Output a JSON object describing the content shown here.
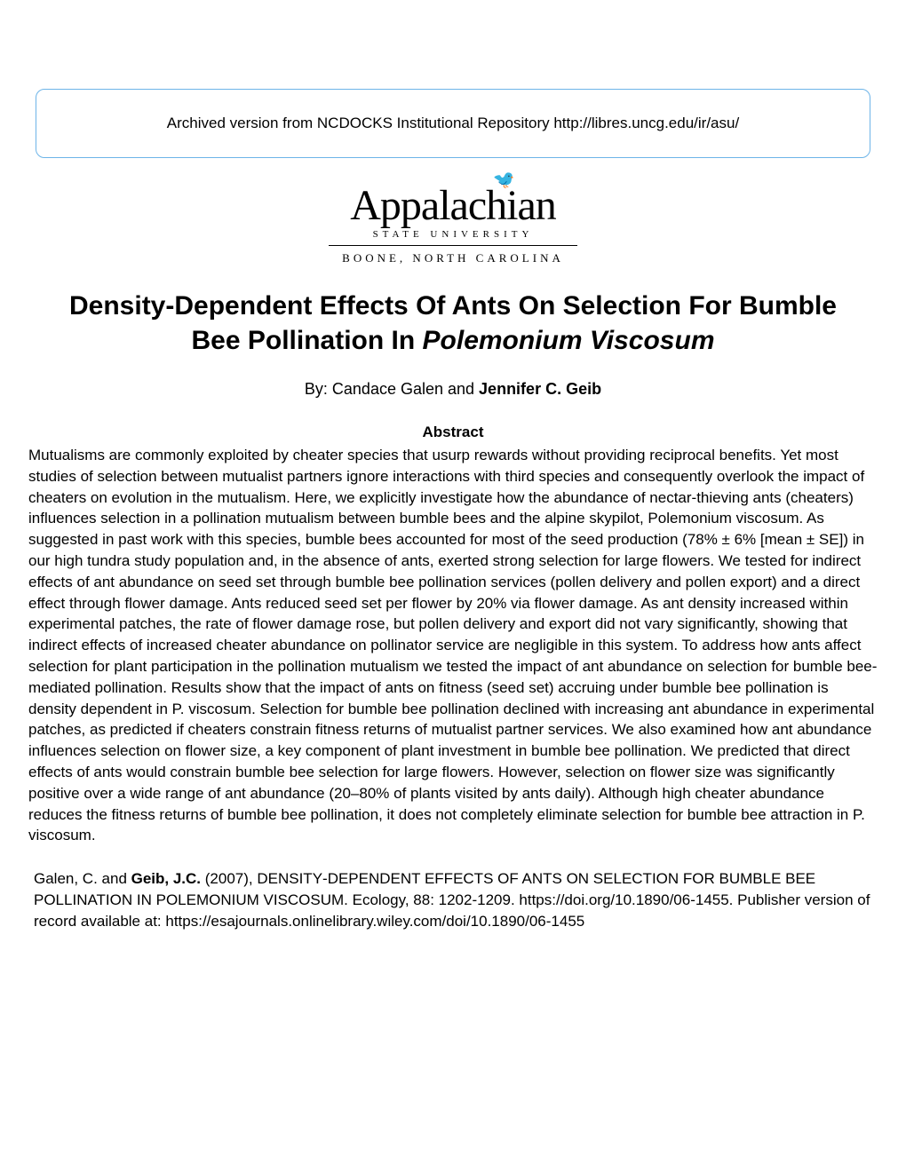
{
  "archive_notice": "Archived version from NCDOCKS Institutional Repository http://libres.uncg.edu/ir/asu/",
  "logo": {
    "main": "Appalachian",
    "subtitle": "STATE UNIVERSITY",
    "location": "BOONE, NORTH CAROLINA"
  },
  "title_line1": "Density-Dependent Effects Of Ants On Selection For Bumble",
  "title_line2_prefix": "Bee Pollination In ",
  "title_line2_italic": "Polemonium Viscosum",
  "byline_prefix": "By: Candace Galen and ",
  "byline_bold": "Jennifer C. Geib",
  "abstract_heading": "Abstract",
  "abstract_text": "Mutualisms are commonly exploited by cheater species that usurp rewards without providing reciprocal benefits. Yet most studies of selection between mutualist partners ignore interactions with third species and consequently overlook the impact of cheaters on evolution in the mutualism. Here, we explicitly investigate how the abundance of nectar‐thieving ants (cheaters) influences selection in a pollination mutualism between bumble bees and the alpine skypilot, Polemonium viscosum. As suggested in past work with this species, bumble bees accounted for most of the seed production (78% ± 6% [mean ± SE]) in our high tundra study population and, in the absence of ants, exerted strong selection for large flowers. We tested for indirect effects of ant abundance on seed set through bumble bee pollination services (pollen delivery and pollen export) and a direct effect through flower damage. Ants reduced seed set per flower by 20% via flower damage. As ant density increased within experimental patches, the rate of flower damage rose, but pollen delivery and export did not vary significantly, showing that indirect effects of increased cheater abundance on pollinator service are negligible in this system. To address how ants affect selection for plant participation in the pollination mutualism we tested the impact of ant abundance on selection for bumble bee‐mediated pollination. Results show that the impact of ants on fitness (seed set) accruing under bumble bee pollination is density dependent in P. viscosum. Selection for bumble bee pollination declined with increasing ant abundance in experimental patches, as predicted if cheaters constrain fitness returns of mutualist partner services. We also examined how ant abundance influences selection on flower size, a key component of plant investment in bumble bee pollination. We predicted that direct effects of ants would constrain bumble bee selection for large flowers. However, selection on flower size was significantly positive over a wide range of ant abundance (20–80% of plants visited by ants daily). Although high cheater abundance reduces the fitness returns of bumble bee pollination, it does not completely eliminate selection for bumble bee attraction in P. viscosum.",
  "citation_prefix": "Galen, C. and ",
  "citation_bold": "Geib, J.C.",
  "citation_suffix": " (2007), DENSITY‐DEPENDENT EFFECTS OF ANTS ON SELECTION FOR BUMBLE BEE POLLINATION IN POLEMONIUM VISCOSUM. Ecology, 88: 1202-1209. https://doi.org/10.1890/06-1455. Publisher version of record available at: https://esajournals.onlinelibrary.wiley.com/doi/10.1890/06-1455",
  "colors": {
    "border": "#6db4e8",
    "text": "#000000",
    "background": "#ffffff"
  },
  "typography": {
    "body_fontsize": 17,
    "title_fontsize": 30,
    "logo_fontsize": 48
  }
}
